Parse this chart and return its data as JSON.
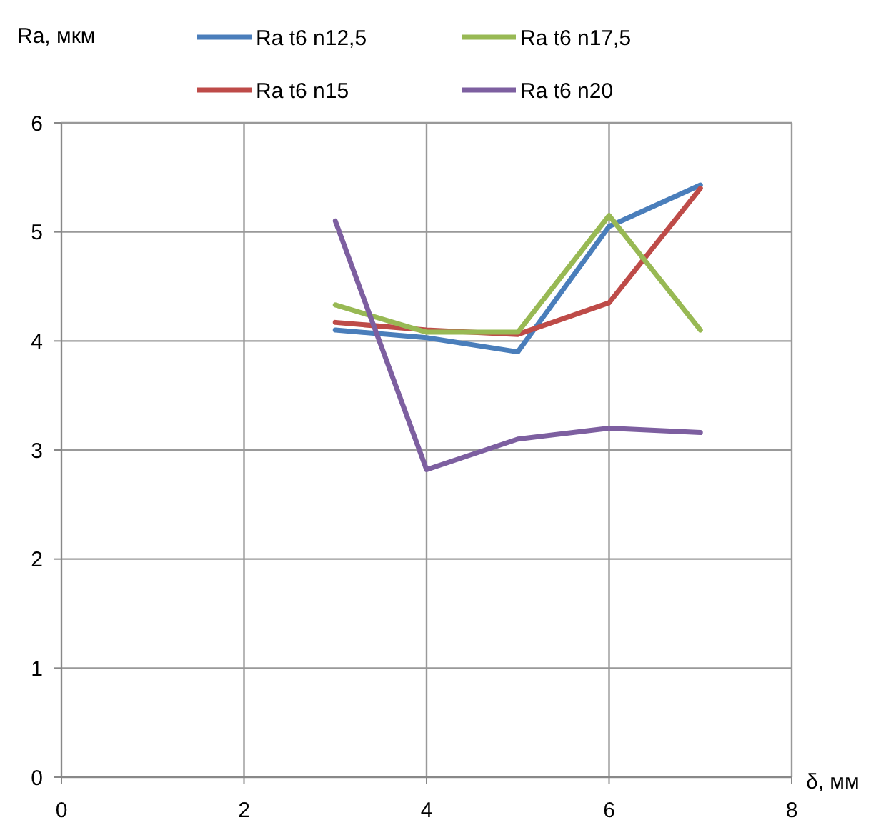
{
  "chart_data": {
    "type": "line",
    "xlabel": "δ, мм",
    "ylabel": "Ra, мкм",
    "x": [
      3,
      4,
      5,
      6,
      7
    ],
    "series": [
      {
        "name": "Ra t6 n12,5",
        "color": "#4a7ebb",
        "values": [
          4.1,
          4.03,
          3.9,
          5.05,
          5.43
        ]
      },
      {
        "name": "Ra t6 n15",
        "color": "#be4b48",
        "values": [
          4.17,
          4.1,
          4.06,
          4.35,
          5.4
        ]
      },
      {
        "name": "Ra t6 n17,5",
        "color": "#98b954",
        "values": [
          4.33,
          4.08,
          4.08,
          5.15,
          4.1
        ]
      },
      {
        "name": "Ra t6 n20",
        "color": "#7d5fa0",
        "values": [
          5.1,
          2.82,
          3.1,
          3.2,
          3.16
        ]
      }
    ],
    "xlim": [
      0,
      8
    ],
    "ylim": [
      0,
      6
    ],
    "xticks": [
      0,
      2,
      4,
      6,
      8
    ],
    "yticks": [
      0,
      1,
      2,
      3,
      4,
      5,
      6
    ],
    "grid": true,
    "legend": "top",
    "marker": "none",
    "line_style": "solid"
  }
}
